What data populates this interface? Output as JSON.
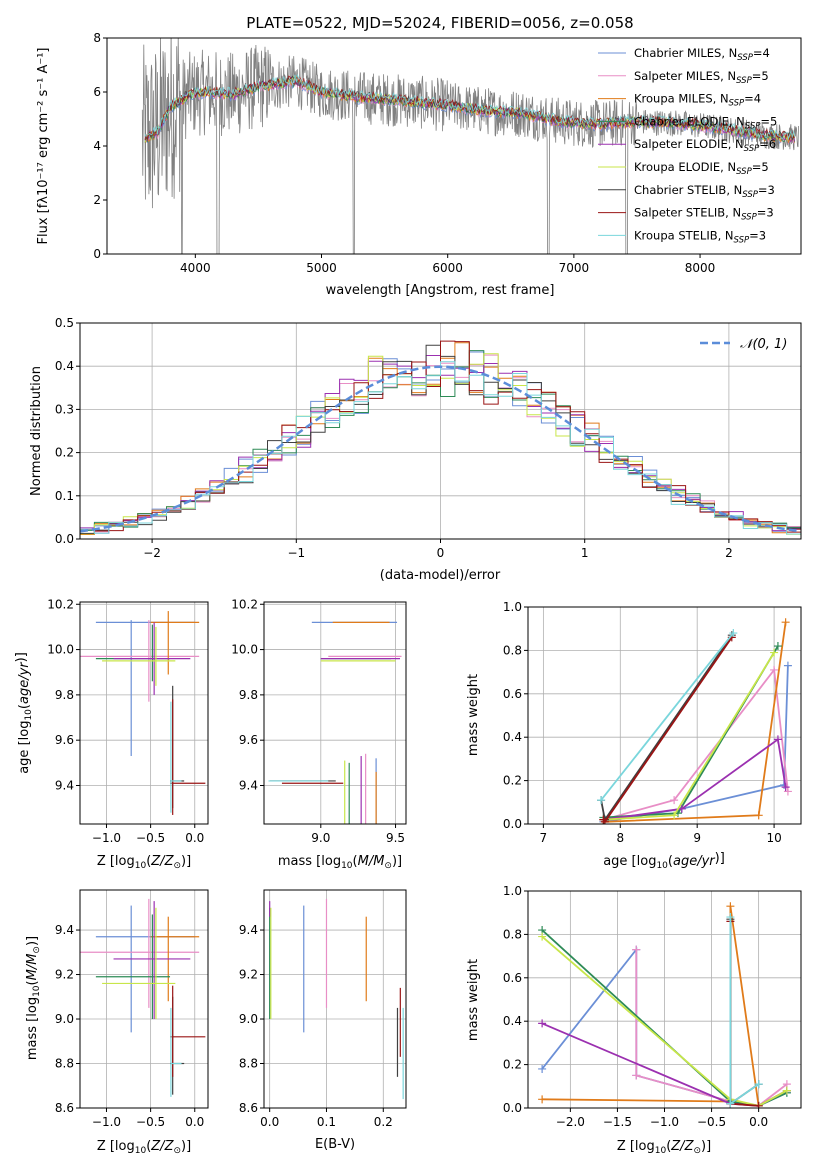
{
  "title": "PLATE=0522, MJD=52024, FIBERID=0056, z=0.058",
  "colors": {
    "Chabrier MILES": "#6b8fd6",
    "Salpeter MILES": "#e88ec6",
    "Kroupa MILES": "#e07b1a",
    "Chabrier ELODIE": "#2e8b57",
    "Salpeter ELODIE": "#9b30b0",
    "Kroupa ELODIE": "#c8e64a",
    "Chabrier STELIB": "#404040",
    "Salpeter STELIB": "#9a1515",
    "Kroupa STELIB": "#7ad6dc",
    "data": "#808080",
    "normal": "#5b8dd9"
  },
  "chart_data": [
    {
      "id": "spectrum",
      "type": "line",
      "xlabel": "wavelength [Angstrom, rest frame]",
      "ylabel": "Flux [fλ10⁻¹⁷ erg cm⁻² s⁻¹ A⁻¹]",
      "xlim": [
        3300,
        8800
      ],
      "ylim": [
        0,
        8
      ],
      "xticks": [
        4000,
        5000,
        6000,
        7000,
        8000
      ],
      "yticks": [
        0,
        2,
        4,
        6,
        8
      ],
      "legend": [
        {
          "label": "Chabrier MILES, N",
          "sub": "SSP",
          "tail": "=4"
        },
        {
          "label": "Salpeter MILES, N",
          "sub": "SSP",
          "tail": "=5"
        },
        {
          "label": "Kroupa MILES, N",
          "sub": "SSP",
          "tail": "=4"
        },
        {
          "label": "Chabrier ELODIE, N",
          "sub": "SSP",
          "tail": "=5"
        },
        {
          "label": "Salpeter ELODIE, N",
          "sub": "SSP",
          "tail": "=6"
        },
        {
          "label": "Kroupa ELODIE, N",
          "sub": "SSP",
          "tail": "=5"
        },
        {
          "label": "Chabrier STELIB, N",
          "sub": "SSP",
          "tail": "=3"
        },
        {
          "label": "Salpeter STELIB, N",
          "sub": "SSP",
          "tail": "=3"
        },
        {
          "label": "Kroupa STELIB, N",
          "sub": "SSP",
          "tail": "=3"
        }
      ],
      "model_continuum": [
        [
          3600,
          4.3
        ],
        [
          3700,
          4.5
        ],
        [
          3800,
          5.4
        ],
        [
          3950,
          5.9
        ],
        [
          4100,
          6.0
        ],
        [
          4300,
          5.9
        ],
        [
          4500,
          6.2
        ],
        [
          4800,
          6.4
        ],
        [
          5000,
          6.0
        ],
        [
          5300,
          5.8
        ],
        [
          5600,
          5.7
        ],
        [
          6000,
          5.5
        ],
        [
          6300,
          5.3
        ],
        [
          6600,
          5.2
        ],
        [
          6900,
          4.9
        ],
        [
          7200,
          4.8
        ],
        [
          7500,
          4.9
        ],
        [
          7800,
          4.85
        ],
        [
          8100,
          4.7
        ],
        [
          8500,
          4.4
        ],
        [
          8800,
          4.3
        ]
      ]
    },
    {
      "id": "residuals",
      "type": "histogram",
      "xlabel": "(data-model)/error",
      "ylabel": "Normed distribution",
      "xlim": [
        -2.5,
        2.5
      ],
      "ylim": [
        0,
        0.5
      ],
      "xticks": [
        -2,
        -1,
        0,
        1,
        2
      ],
      "yticks": [
        0.0,
        0.1,
        0.2,
        0.3,
        0.4,
        0.5
      ],
      "legend": "N(0,1)",
      "grid": true,
      "bin_width": 0.1
    },
    {
      "id": "age_vs_Z",
      "type": "scatter",
      "xlabel": "Z [log10(Z/Z⊙)]",
      "ylabel": "age  [log10(age/yr)]",
      "xlim": [
        -1.3,
        0.15
      ],
      "ylim": [
        9.23,
        10.21
      ],
      "xticks": [
        -1.0,
        -0.5,
        0.0
      ],
      "yticks": [
        9.4,
        9.6,
        9.8,
        10.0,
        10.2
      ]
    },
    {
      "id": "age_vs_mass",
      "type": "scatter",
      "xlabel": "mass [log10(M/M⊙)]",
      "xlim": [
        8.62,
        9.57
      ],
      "ylim": [
        9.23,
        10.21
      ],
      "xticks": [
        9.0,
        9.5
      ],
      "yticks": [
        9.4,
        9.6,
        9.8,
        10.0,
        10.2
      ]
    },
    {
      "id": "weight_vs_age",
      "type": "line",
      "xlabel": "age  [log10(age/yr)]",
      "ylabel": "mass weight",
      "xlim": [
        6.8,
        10.35
      ],
      "ylim": [
        0,
        1
      ],
      "xticks": [
        7,
        8,
        9,
        10
      ],
      "yticks": [
        0.0,
        0.2,
        0.4,
        0.6,
        0.8,
        1.0
      ],
      "series": [
        {
          "name": "Chabrier MILES",
          "x": [
            7.78,
            8.8,
            10.13,
            10.18
          ],
          "y": [
            0.01,
            0.07,
            0.18,
            0.73
          ]
        },
        {
          "name": "Salpeter MILES",
          "x": [
            7.78,
            8.7,
            10.0,
            10.18
          ],
          "y": [
            0.02,
            0.11,
            0.71,
            0.15
          ]
        },
        {
          "name": "Kroupa MILES",
          "x": [
            7.8,
            9.8,
            10.15
          ],
          "y": [
            0.01,
            0.04,
            0.93
          ]
        },
        {
          "name": "Chabrier ELODIE",
          "x": [
            7.78,
            8.75,
            10.05
          ],
          "y": [
            0.03,
            0.05,
            0.82
          ]
        },
        {
          "name": "Salpeter ELODIE",
          "x": [
            7.78,
            8.8,
            10.05,
            10.15
          ],
          "y": [
            0.02,
            0.07,
            0.39,
            0.17
          ]
        },
        {
          "name": "Kroupa ELODIE",
          "x": [
            7.78,
            8.7,
            10.0
          ],
          "y": [
            0.02,
            0.04,
            0.79
          ]
        },
        {
          "name": "Chabrier STELIB",
          "x": [
            7.75,
            7.8,
            9.45
          ],
          "y": [
            0.11,
            0.02,
            0.87
          ]
        },
        {
          "name": "Salpeter STELIB",
          "x": [
            7.78,
            7.8,
            9.45
          ],
          "y": [
            0.02,
            0.01,
            0.86
          ]
        },
        {
          "name": "Kroupa STELIB",
          "x": [
            7.75,
            9.47
          ],
          "y": [
            0.11,
            0.88
          ]
        }
      ]
    },
    {
      "id": "mass_vs_Z",
      "type": "scatter",
      "xlabel": "Z [log10(Z/Z⊙)]",
      "ylabel": "mass [log10(M/M⊙)]",
      "xlim": [
        -1.3,
        0.15
      ],
      "ylim": [
        8.6,
        9.58
      ],
      "xticks": [
        -1.0,
        -0.5,
        0.0
      ],
      "yticks": [
        8.6,
        8.8,
        9.0,
        9.2,
        9.4
      ]
    },
    {
      "id": "mass_vs_ebv",
      "type": "scatter",
      "xlabel": "E(B-V)",
      "xlim": [
        -0.01,
        0.24
      ],
      "ylim": [
        8.6,
        9.58
      ],
      "xticks": [
        0.0,
        0.1,
        0.2
      ],
      "yticks": [
        8.6,
        8.8,
        9.0,
        9.2,
        9.4
      ]
    },
    {
      "id": "weight_vs_Z",
      "type": "line",
      "xlabel": "Z [log10(Z/Z⊙)]",
      "ylabel": "mass weight",
      "xlim": [
        -2.45,
        0.45
      ],
      "ylim": [
        0,
        1
      ],
      "xticks": [
        -2.0,
        -1.5,
        -1.0,
        -0.5,
        0.0
      ],
      "yticks": [
        0.0,
        0.2,
        0.4,
        0.6,
        0.8,
        1.0
      ],
      "series": [
        {
          "name": "Chabrier MILES",
          "x": [
            -2.3,
            -1.3,
            -1.3,
            -0.3,
            0.0,
            0.3
          ],
          "y": [
            0.18,
            0.73,
            0.15,
            0.03,
            0.01,
            0.07
          ]
        },
        {
          "name": "Salpeter MILES",
          "x": [
            -1.3,
            -1.3,
            -0.3,
            0.0,
            0.3
          ],
          "y": [
            0.73,
            0.15,
            0.03,
            0.01,
            0.11
          ]
        },
        {
          "name": "Kroupa MILES",
          "x": [
            -2.3,
            -0.3,
            -0.3,
            0.0,
            0.3
          ],
          "y": [
            0.04,
            0.03,
            0.93,
            0.01,
            0.08
          ]
        },
        {
          "name": "Chabrier ELODIE",
          "x": [
            -2.3,
            -0.3,
            0.0,
            0.3
          ],
          "y": [
            0.82,
            0.03,
            0.01,
            0.07
          ]
        },
        {
          "name": "Salpeter ELODIE",
          "x": [
            -2.3,
            -0.3,
            0.0,
            0.3
          ],
          "y": [
            0.39,
            0.02,
            0.01,
            0.08
          ]
        },
        {
          "name": "Kroupa ELODIE",
          "x": [
            -2.3,
            -0.3,
            0.0,
            0.3
          ],
          "y": [
            0.79,
            0.04,
            0.01,
            0.08
          ]
        },
        {
          "name": "Chabrier STELIB",
          "x": [
            -0.3,
            -0.3,
            0.0
          ],
          "y": [
            0.87,
            0.02,
            0.11
          ]
        },
        {
          "name": "Salpeter STELIB",
          "x": [
            -0.3,
            -0.3,
            0.0
          ],
          "y": [
            0.86,
            0.02,
            0.01
          ]
        },
        {
          "name": "Kroupa STELIB",
          "x": [
            -0.3,
            -0.3,
            0.0
          ],
          "y": [
            0.88,
            0.02,
            0.11
          ]
        }
      ]
    }
  ],
  "points": [
    {
      "name": "Chabrier MILES",
      "Z": -0.72,
      "Zlo": -1.12,
      "Zhi": 0.0,
      "age": 10.12,
      "ageLo": 9.53,
      "ageHi": 10.13,
      "mass": 9.37,
      "massLo": 8.94,
      "massHi": 9.51,
      "mAgeLo": 9.13,
      "mAgeHi": 9.52,
      "ebv": 0.06,
      "ebvLo": 8.94,
      "ebvHi": 9.51
    },
    {
      "name": "Salpeter MILES",
      "Z": -0.52,
      "Zlo": -1.33,
      "Zhi": 0.05,
      "age": 9.97,
      "ageLo": 9.77,
      "ageHi": 10.13,
      "mass": 9.3,
      "massLo": 9.05,
      "massHi": 9.54,
      "mAgeLo": 9.06,
      "mAgeHi": 9.54,
      "ebv": 0.1,
      "ebvLo": 9.05,
      "ebvHi": 9.54
    },
    {
      "name": "Kroupa MILES",
      "Z": -0.3,
      "Zlo": -0.5,
      "Zhi": 0.05,
      "age": 10.12,
      "ageLo": 9.89,
      "ageHi": 10.17,
      "mass": 9.37,
      "massLo": 9.08,
      "massHi": 9.46,
      "mAgeLo": 9.18,
      "mAgeHi": 9.46,
      "ebv": 0.17,
      "ebvLo": 9.08,
      "ebvHi": 9.46
    },
    {
      "name": "Chabrier ELODIE",
      "Z": -0.48,
      "Zlo": -1.12,
      "Zhi": -0.28,
      "age": 9.96,
      "ageLo": 9.86,
      "ageHi": 10.11,
      "mass": 9.19,
      "massLo": 9.0,
      "massHi": 9.47,
      "mAgeLo": 8.98,
      "mAgeHi": 9.5,
      "ebv": 0.0,
      "ebvLo": 9.0,
      "ebvHi": 9.5
    },
    {
      "name": "Salpeter ELODIE",
      "Z": -0.46,
      "Zlo": -0.92,
      "Zhi": -0.05,
      "age": 9.96,
      "ageLo": 9.8,
      "ageHi": 10.12,
      "mass": 9.27,
      "massLo": 9.0,
      "massHi": 9.53,
      "mAgeLo": 9.07,
      "mAgeHi": 9.53,
      "ebv": 0.0,
      "ebvLo": 9.46,
      "ebvHi": 9.53
    },
    {
      "name": "Kroupa ELODIE",
      "Z": -0.44,
      "Zlo": -1.05,
      "Zhi": -0.22,
      "age": 9.95,
      "ageLo": 9.84,
      "ageHi": 10.1,
      "mass": 9.16,
      "massLo": 9.0,
      "massHi": 9.5,
      "mAgeLo": 8.96,
      "mAgeHi": 9.51,
      "ebv": 0.002,
      "ebvLo": 9.0,
      "ebvHi": 9.5
    },
    {
      "name": "Chabrier STELIB",
      "Z": -0.25,
      "Zlo": -0.28,
      "Zhi": -0.12,
      "age": 9.42,
      "ageLo": 9.3,
      "ageHi": 9.84,
      "mass": 8.8,
      "massLo": 8.66,
      "massHi": 9.1,
      "mAgeLo": 8.72,
      "mAgeHi": 8.98,
      "ebv": 0.225,
      "ebvLo": 8.74,
      "ebvHi": 9.05
    },
    {
      "name": "Salpeter STELIB",
      "Z": -0.25,
      "Zlo": -0.28,
      "Zhi": 0.12,
      "age": 9.41,
      "ageLo": 9.27,
      "ageHi": 9.78,
      "mass": 8.92,
      "massLo": 8.74,
      "massHi": 9.15,
      "mAgeLo": 8.86,
      "mAgeHi": 9.17,
      "ebv": 0.23,
      "ebvLo": 8.83,
      "ebvHi": 9.14
    },
    {
      "name": "Kroupa STELIB",
      "Z": -0.27,
      "Zlo": -0.27,
      "Zhi": -0.15,
      "age": 9.42,
      "ageLo": 9.28,
      "ageHi": 9.77,
      "mass": 8.8,
      "massLo": 8.65,
      "massHi": 9.05,
      "mAgeLo": 8.72,
      "mAgeHi": 8.97,
      "ebv": 0.235,
      "ebvLo": 8.64,
      "ebvHi": 9.05
    }
  ]
}
